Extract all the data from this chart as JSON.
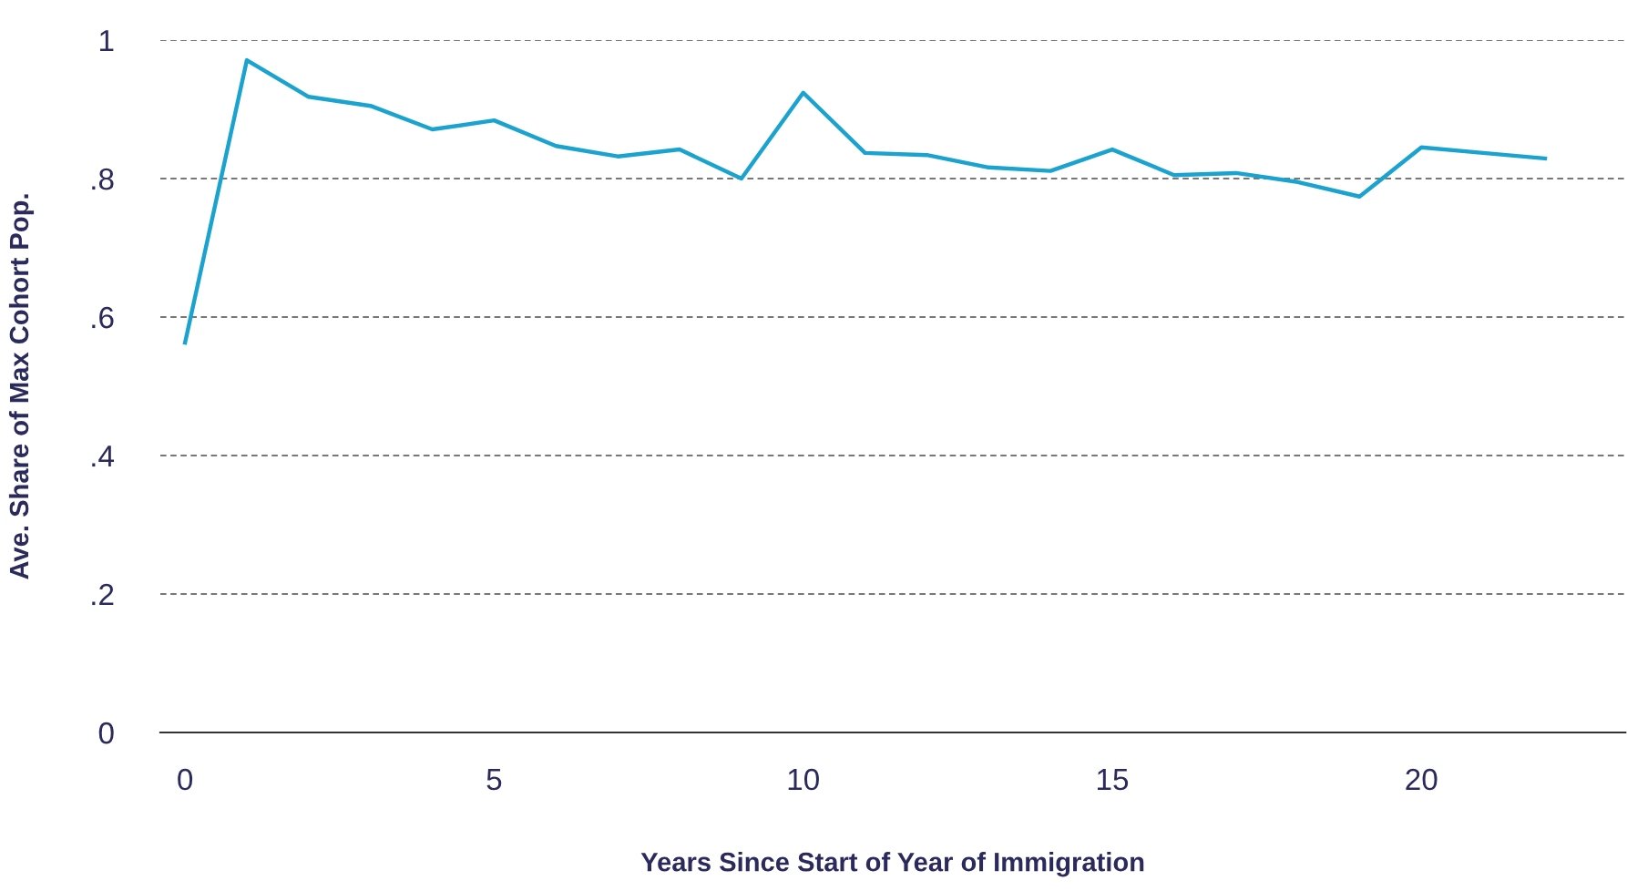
{
  "chart_data": {
    "type": "line",
    "xlabel": "Years Since Start of Year of Immigration",
    "ylabel": "Ave. Share of Max Cohort Pop.",
    "x": [
      0,
      1,
      2,
      3,
      4,
      5,
      6,
      7,
      8,
      9,
      10,
      11,
      12,
      13,
      14,
      15,
      16,
      17,
      18,
      19,
      20,
      21,
      22
    ],
    "series": [
      {
        "color": "#1ba3d0",
        "values": [
          0.563,
          0.971,
          0.918,
          0.905,
          0.871,
          0.884,
          0.847,
          0.832,
          0.842,
          0.8,
          0.924,
          0.837,
          0.834,
          0.816,
          0.811,
          0.842,
          0.805,
          0.808,
          0.795,
          0.774,
          0.845,
          0.837,
          0.829
        ]
      }
    ],
    "xlim": [
      -0.4,
      23.3
    ],
    "ylim": [
      0,
      1
    ],
    "xticks": [
      0,
      5,
      10,
      15,
      20
    ],
    "yticks": [
      {
        "value": 0,
        "label": "0"
      },
      {
        "value": 0.2,
        "label": ".2"
      },
      {
        "value": 0.4,
        "label": ".4"
      },
      {
        "value": 0.6,
        "label": ".6"
      },
      {
        "value": 0.8,
        "label": ".8"
      },
      {
        "value": 1,
        "label": "1"
      }
    ],
    "grid": "y",
    "marker": "none",
    "line_style": "solid",
    "legend": false
  }
}
